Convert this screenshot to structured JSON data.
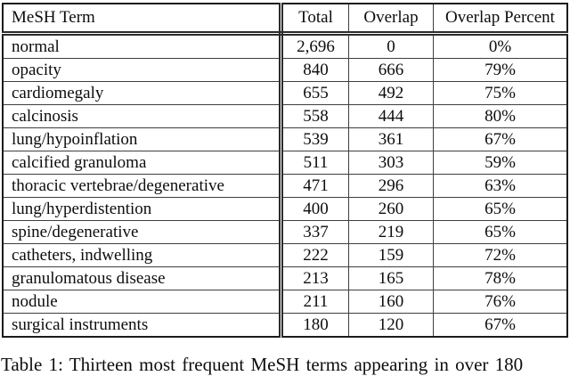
{
  "page": {
    "background_color": "#ffffff",
    "text_color": "#0d0d0d",
    "border_color": "#1b1b1b"
  },
  "table": {
    "columns": [
      "MeSH Term",
      "Total",
      "Overlap",
      "Overlap Percent"
    ],
    "rows": [
      [
        "normal",
        "2,696",
        "0",
        "0%"
      ],
      [
        "opacity",
        "840",
        "666",
        "79%"
      ],
      [
        "cardiomegaly",
        "655",
        "492",
        "75%"
      ],
      [
        "calcinosis",
        "558",
        "444",
        "80%"
      ],
      [
        "lung/hypoinflation",
        "539",
        "361",
        "67%"
      ],
      [
        "calcified granuloma",
        "511",
        "303",
        "59%"
      ],
      [
        "thoracic vertebrae/degenerative",
        "471",
        "296",
        "63%"
      ],
      [
        "lung/hyperdistention",
        "400",
        "260",
        "65%"
      ],
      [
        "spine/degenerative",
        "337",
        "219",
        "65%"
      ],
      [
        "catheters, indwelling",
        "222",
        "159",
        "72%"
      ],
      [
        "granulomatous disease",
        "213",
        "165",
        "78%"
      ],
      [
        "nodule",
        "211",
        "160",
        "76%"
      ],
      [
        "surgical instruments",
        "180",
        "120",
        "67%"
      ]
    ]
  },
  "caption": {
    "text": "Table 1: Thirteen most frequent MeSH terms appearing in over 180"
  }
}
